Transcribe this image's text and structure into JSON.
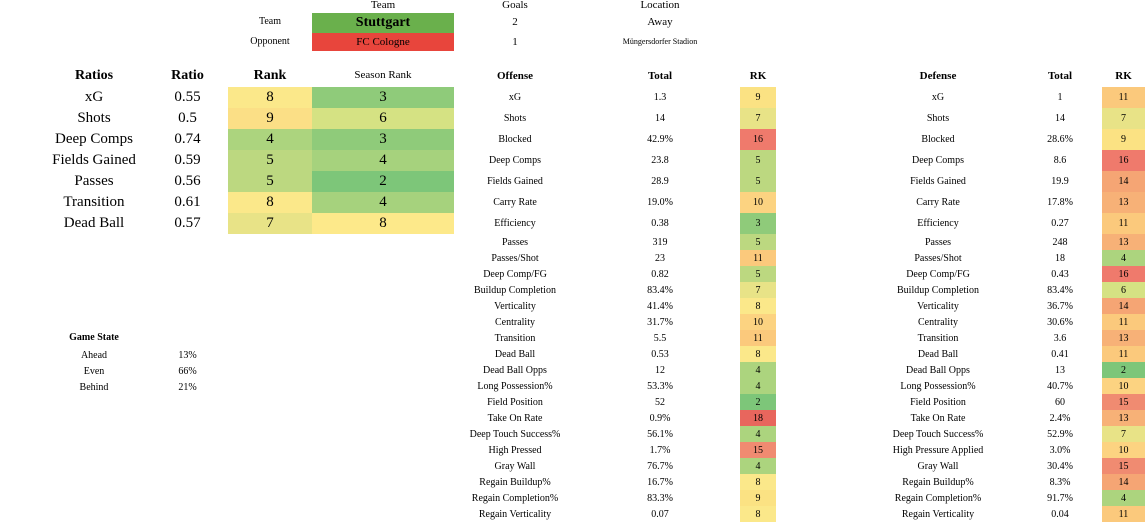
{
  "header": {
    "team_col": "Team",
    "goals_col": "Goals",
    "location_col": "Location",
    "team_label": "Team",
    "opponent_label": "Opponent",
    "team_name": "Stuttgart",
    "opponent_name": "FC Cologne",
    "team_goals": "2",
    "opponent_goals": "1",
    "team_location": "Away",
    "opponent_location": "Müngersdorfer Stadion",
    "team_color": "#6ab04c",
    "opponent_color": "#e8453c"
  },
  "ratios": {
    "headers": [
      "Ratios",
      "Ratio",
      "Rank",
      "Season Rank"
    ],
    "rows": [
      {
        "label": "xG",
        "ratio": "0.55",
        "rank": "8",
        "season_rank": "3",
        "rank_color": "#fbe88a",
        "season_color": "#8fcb7a"
      },
      {
        "label": "Shots",
        "ratio": "0.5",
        "rank": "9",
        "season_rank": "6",
        "rank_color": "#fbdf86",
        "season_color": "#d5e283"
      },
      {
        "label": "Deep Comps",
        "ratio": "0.74",
        "rank": "4",
        "season_rank": "3",
        "rank_color": "#acd47e",
        "season_color": "#8fcb7a"
      },
      {
        "label": "Fields Gained",
        "ratio": "0.59",
        "rank": "5",
        "season_rank": "4",
        "rank_color": "#bcd880",
        "season_color": "#a6d27d"
      },
      {
        "label": "Passes",
        "ratio": "0.56",
        "rank": "5",
        "season_rank": "2",
        "rank_color": "#bcd880",
        "season_color": "#7dc679"
      },
      {
        "label": "Transition",
        "ratio": "0.61",
        "rank": "8",
        "season_rank": "4",
        "rank_color": "#fbe88a",
        "season_color": "#a6d27d"
      },
      {
        "label": "Dead Ball",
        "ratio": "0.57",
        "rank": "7",
        "season_rank": "8",
        "rank_color": "#e8e387",
        "season_color": "#fde98a"
      }
    ]
  },
  "game_state": {
    "title": "Game State",
    "rows": [
      {
        "label": "Ahead",
        "value": "13%"
      },
      {
        "label": "Even",
        "value": "66%"
      },
      {
        "label": "Behind",
        "value": "21%"
      }
    ]
  },
  "offense": {
    "headers": [
      "Offense",
      "Total",
      "RK"
    ],
    "rows": [
      {
        "label": "xG",
        "total": "1.3",
        "rk": "9",
        "color": "#fbe283"
      },
      {
        "label": "Shots",
        "total": "14",
        "rk": "7",
        "color": "#e8e387"
      },
      {
        "label": "Blocked",
        "total": "42.9%",
        "rk": "16",
        "color": "#ef7a6c"
      },
      {
        "label": "Deep Comps",
        "total": "23.8",
        "rk": "5",
        "color": "#bcd880"
      },
      {
        "label": "Fields Gained",
        "total": "28.9",
        "rk": "5",
        "color": "#bcd880"
      },
      {
        "label": "Carry Rate",
        "total": "19.0%",
        "rk": "10",
        "color": "#fcd381"
      },
      {
        "label": "Efficiency",
        "total": "0.38",
        "rk": "3",
        "color": "#8fcb7a"
      },
      {
        "label": "Passes",
        "total": "319",
        "rk": "5",
        "color": "#bcd880"
      },
      {
        "label": "Passes/Shot",
        "total": "23",
        "rk": "11",
        "color": "#fbc97c"
      },
      {
        "label": "Deep Comp/FG",
        "total": "0.82",
        "rk": "5",
        "color": "#bcd880"
      },
      {
        "label": "Buildup Completion",
        "total": "83.4%",
        "rk": "7",
        "color": "#e8e387"
      },
      {
        "label": "Verticality",
        "total": "41.4%",
        "rk": "8",
        "color": "#fbe88a"
      },
      {
        "label": "Centrality",
        "total": "31.7%",
        "rk": "10",
        "color": "#fcd381"
      },
      {
        "label": "Transition",
        "total": "5.5",
        "rk": "11",
        "color": "#fbc97c"
      },
      {
        "label": "Dead Ball",
        "total": "0.53",
        "rk": "8",
        "color": "#fbe88a"
      },
      {
        "label": "Dead Ball Opps",
        "total": "12",
        "rk": "4",
        "color": "#acd47e"
      },
      {
        "label": "Long Possession%",
        "total": "53.3%",
        "rk": "4",
        "color": "#acd47e"
      },
      {
        "label": "Field Position",
        "total": "52",
        "rk": "2",
        "color": "#7dc679"
      },
      {
        "label": "Take On Rate",
        "total": "0.9%",
        "rk": "18",
        "color": "#e8665d"
      },
      {
        "label": "Deep Touch Success%",
        "total": "56.1%",
        "rk": "4",
        "color": "#acd47e"
      },
      {
        "label": "High Pressed",
        "total": "1.7%",
        "rk": "15",
        "color": "#f08b71"
      },
      {
        "label": "Gray Wall",
        "total": "76.7%",
        "rk": "4",
        "color": "#acd47e"
      },
      {
        "label": "Regain Buildup%",
        "total": "16.7%",
        "rk": "8",
        "color": "#fbe88a"
      },
      {
        "label": "Regain Completion%",
        "total": "83.3%",
        "rk": "9",
        "color": "#fbe283"
      },
      {
        "label": "Regain Verticality",
        "total": "0.07",
        "rk": "8",
        "color": "#fbe88a"
      }
    ]
  },
  "defense": {
    "headers": [
      "Defense",
      "Total",
      "RK"
    ],
    "rows": [
      {
        "label": "xG",
        "total": "1",
        "rk": "11",
        "color": "#fbc97c"
      },
      {
        "label": "Shots",
        "total": "14",
        "rk": "7",
        "color": "#e8e387"
      },
      {
        "label": "Blocked",
        "total": "28.6%",
        "rk": "9",
        "color": "#fbe283"
      },
      {
        "label": "Deep Comps",
        "total": "8.6",
        "rk": "16",
        "color": "#ef7a6c"
      },
      {
        "label": "Fields Gained",
        "total": "19.9",
        "rk": "14",
        "color": "#f5a574"
      },
      {
        "label": "Carry Rate",
        "total": "17.8%",
        "rk": "13",
        "color": "#f7b177"
      },
      {
        "label": "Efficiency",
        "total": "0.27",
        "rk": "11",
        "color": "#fbc97c"
      },
      {
        "label": "Passes",
        "total": "248",
        "rk": "13",
        "color": "#f7b177"
      },
      {
        "label": "Passes/Shot",
        "total": "18",
        "rk": "4",
        "color": "#acd47e"
      },
      {
        "label": "Deep Comp/FG",
        "total": "0.43",
        "rk": "16",
        "color": "#ef7a6c"
      },
      {
        "label": "Buildup Completion",
        "total": "83.4%",
        "rk": "6",
        "color": "#d5e283"
      },
      {
        "label": "Verticality",
        "total": "36.7%",
        "rk": "14",
        "color": "#f5a574"
      },
      {
        "label": "Centrality",
        "total": "30.6%",
        "rk": "11",
        "color": "#fbc97c"
      },
      {
        "label": "Transition",
        "total": "3.6",
        "rk": "13",
        "color": "#f7b177"
      },
      {
        "label": "Dead Ball",
        "total": "0.41",
        "rk": "11",
        "color": "#fbc97c"
      },
      {
        "label": "Dead Ball Opps",
        "total": "13",
        "rk": "2",
        "color": "#7dc679"
      },
      {
        "label": "Long Possession%",
        "total": "40.7%",
        "rk": "10",
        "color": "#fcd381"
      },
      {
        "label": "Field Position",
        "total": "60",
        "rk": "15",
        "color": "#f08b71"
      },
      {
        "label": "Take On Rate",
        "total": "2.4%",
        "rk": "13",
        "color": "#f7b177"
      },
      {
        "label": "Deep Touch Success%",
        "total": "52.9%",
        "rk": "7",
        "color": "#e8e387"
      },
      {
        "label": "High Pressure Applied",
        "total": "3.0%",
        "rk": "10",
        "color": "#fcd381"
      },
      {
        "label": "Gray Wall",
        "total": "30.4%",
        "rk": "15",
        "color": "#f08b71"
      },
      {
        "label": "Regain Buildup%",
        "total": "8.3%",
        "rk": "14",
        "color": "#f5a574"
      },
      {
        "label": "Regain Completion%",
        "total": "91.7%",
        "rk": "4",
        "color": "#acd47e"
      },
      {
        "label": "Regain Verticality",
        "total": "0.04",
        "rk": "11",
        "color": "#fbc97c"
      }
    ]
  }
}
